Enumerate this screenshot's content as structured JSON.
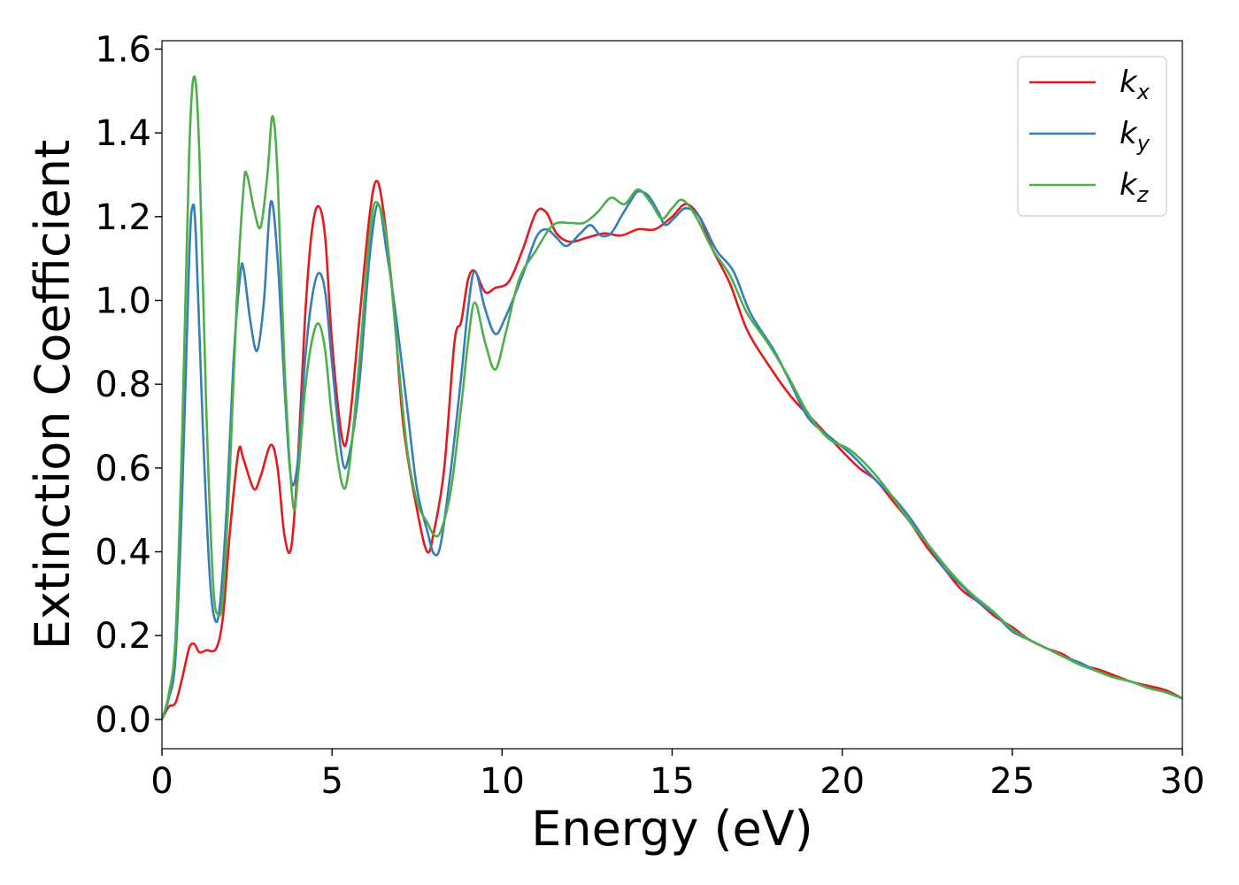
{
  "chart_data": {
    "type": "line",
    "title": "",
    "xlabel": "Energy (eV)",
    "ylabel": "Extinction Coefficient",
    "xlim": [
      0,
      30
    ],
    "ylim": [
      -0.07,
      1.62
    ],
    "xticks": [
      0,
      5,
      10,
      15,
      20,
      25,
      30
    ],
    "xtick_labels": [
      "0",
      "5",
      "10",
      "15",
      "20",
      "25",
      "30"
    ],
    "yticks": [
      0.0,
      0.2,
      0.4,
      0.6,
      0.8,
      1.0,
      1.2,
      1.4,
      1.6
    ],
    "ytick_labels": [
      "0.0",
      "0.2",
      "0.4",
      "0.6",
      "0.8",
      "1.0",
      "1.2",
      "1.4",
      "1.6"
    ],
    "grid": false,
    "legend_position": "top-right",
    "series": [
      {
        "name": "k",
        "subscript": "x",
        "color": "#e41a1c",
        "points": [
          [
            0,
            0.0
          ],
          [
            0.2,
            0.03
          ],
          [
            0.4,
            0.04
          ],
          [
            0.6,
            0.1
          ],
          [
            0.8,
            0.17
          ],
          [
            0.95,
            0.18
          ],
          [
            1.1,
            0.16
          ],
          [
            1.3,
            0.165
          ],
          [
            1.6,
            0.17
          ],
          [
            1.8,
            0.25
          ],
          [
            2.0,
            0.45
          ],
          [
            2.25,
            0.64
          ],
          [
            2.4,
            0.62
          ],
          [
            2.7,
            0.55
          ],
          [
            2.9,
            0.58
          ],
          [
            3.2,
            0.655
          ],
          [
            3.4,
            0.6
          ],
          [
            3.6,
            0.44
          ],
          [
            3.8,
            0.41
          ],
          [
            4.0,
            0.62
          ],
          [
            4.2,
            0.95
          ],
          [
            4.4,
            1.16
          ],
          [
            4.6,
            1.225
          ],
          [
            4.8,
            1.15
          ],
          [
            5.0,
            0.9
          ],
          [
            5.3,
            0.67
          ],
          [
            5.5,
            0.7
          ],
          [
            5.8,
            0.95
          ],
          [
            6.1,
            1.2
          ],
          [
            6.3,
            1.285
          ],
          [
            6.5,
            1.22
          ],
          [
            6.8,
            1.0
          ],
          [
            7.1,
            0.7
          ],
          [
            7.5,
            0.5
          ],
          [
            7.8,
            0.4
          ],
          [
            8.0,
            0.45
          ],
          [
            8.3,
            0.6
          ],
          [
            8.6,
            0.9
          ],
          [
            8.8,
            0.95
          ],
          [
            9.0,
            1.05
          ],
          [
            9.2,
            1.07
          ],
          [
            9.5,
            1.02
          ],
          [
            9.8,
            1.03
          ],
          [
            10.2,
            1.045
          ],
          [
            10.6,
            1.12
          ],
          [
            11.0,
            1.21
          ],
          [
            11.3,
            1.21
          ],
          [
            11.6,
            1.16
          ],
          [
            12.0,
            1.14
          ],
          [
            12.5,
            1.15
          ],
          [
            13.0,
            1.16
          ],
          [
            13.5,
            1.155
          ],
          [
            14.0,
            1.17
          ],
          [
            14.5,
            1.17
          ],
          [
            15.0,
            1.2
          ],
          [
            15.4,
            1.23
          ],
          [
            15.8,
            1.2
          ],
          [
            16.2,
            1.12
          ],
          [
            16.7,
            1.04
          ],
          [
            17.2,
            0.93
          ],
          [
            17.8,
            0.85
          ],
          [
            18.5,
            0.77
          ],
          [
            19.2,
            0.71
          ],
          [
            20.0,
            0.64
          ],
          [
            20.5,
            0.6
          ],
          [
            21.0,
            0.57
          ],
          [
            21.5,
            0.52
          ],
          [
            22.0,
            0.47
          ],
          [
            22.5,
            0.41
          ],
          [
            23.0,
            0.36
          ],
          [
            23.5,
            0.31
          ],
          [
            24.0,
            0.28
          ],
          [
            24.5,
            0.245
          ],
          [
            25.0,
            0.22
          ],
          [
            25.5,
            0.19
          ],
          [
            26.0,
            0.17
          ],
          [
            26.5,
            0.155
          ],
          [
            27.0,
            0.13
          ],
          [
            27.5,
            0.12
          ],
          [
            28.0,
            0.105
          ],
          [
            28.5,
            0.09
          ],
          [
            29.0,
            0.08
          ],
          [
            29.5,
            0.07
          ],
          [
            30.0,
            0.05
          ]
        ]
      },
      {
        "name": "k",
        "subscript": "y",
        "color": "#377eb8",
        "points": [
          [
            0,
            0.0
          ],
          [
            0.2,
            0.05
          ],
          [
            0.4,
            0.15
          ],
          [
            0.6,
            0.55
          ],
          [
            0.8,
            1.1
          ],
          [
            0.9,
            1.225
          ],
          [
            1.0,
            1.15
          ],
          [
            1.2,
            0.7
          ],
          [
            1.4,
            0.35
          ],
          [
            1.55,
            0.24
          ],
          [
            1.7,
            0.27
          ],
          [
            1.9,
            0.5
          ],
          [
            2.1,
            0.85
          ],
          [
            2.3,
            1.06
          ],
          [
            2.4,
            1.075
          ],
          [
            2.6,
            0.95
          ],
          [
            2.8,
            0.88
          ],
          [
            3.0,
            1.0
          ],
          [
            3.2,
            1.235
          ],
          [
            3.4,
            1.1
          ],
          [
            3.6,
            0.8
          ],
          [
            3.8,
            0.57
          ],
          [
            4.0,
            0.62
          ],
          [
            4.2,
            0.85
          ],
          [
            4.4,
            1.0
          ],
          [
            4.6,
            1.065
          ],
          [
            4.8,
            1.02
          ],
          [
            5.0,
            0.85
          ],
          [
            5.3,
            0.62
          ],
          [
            5.5,
            0.63
          ],
          [
            5.8,
            0.8
          ],
          [
            6.1,
            1.1
          ],
          [
            6.35,
            1.23
          ],
          [
            6.6,
            1.12
          ],
          [
            6.9,
            0.95
          ],
          [
            7.2,
            0.75
          ],
          [
            7.5,
            0.55
          ],
          [
            7.8,
            0.45
          ],
          [
            8.0,
            0.395
          ],
          [
            8.2,
            0.42
          ],
          [
            8.5,
            0.6
          ],
          [
            8.8,
            0.82
          ],
          [
            9.0,
            0.98
          ],
          [
            9.2,
            1.07
          ],
          [
            9.5,
            0.98
          ],
          [
            9.8,
            0.92
          ],
          [
            10.1,
            0.96
          ],
          [
            10.6,
            1.06
          ],
          [
            11.0,
            1.15
          ],
          [
            11.3,
            1.17
          ],
          [
            11.6,
            1.15
          ],
          [
            11.9,
            1.13
          ],
          [
            12.3,
            1.16
          ],
          [
            12.6,
            1.18
          ],
          [
            12.9,
            1.155
          ],
          [
            13.2,
            1.16
          ],
          [
            13.5,
            1.2
          ],
          [
            13.8,
            1.24
          ],
          [
            14.0,
            1.26
          ],
          [
            14.3,
            1.25
          ],
          [
            14.6,
            1.21
          ],
          [
            14.8,
            1.18
          ],
          [
            15.1,
            1.2
          ],
          [
            15.4,
            1.22
          ],
          [
            15.8,
            1.2
          ],
          [
            16.3,
            1.12
          ],
          [
            16.8,
            1.07
          ],
          [
            17.3,
            0.97
          ],
          [
            18.0,
            0.88
          ],
          [
            18.5,
            0.8
          ],
          [
            19.0,
            0.72
          ],
          [
            19.7,
            0.67
          ],
          [
            20.3,
            0.63
          ],
          [
            21.0,
            0.57
          ],
          [
            21.5,
            0.53
          ],
          [
            22.0,
            0.48
          ],
          [
            22.5,
            0.42
          ],
          [
            23.0,
            0.36
          ],
          [
            23.5,
            0.32
          ],
          [
            24.0,
            0.28
          ],
          [
            24.5,
            0.25
          ],
          [
            25.0,
            0.21
          ],
          [
            25.5,
            0.19
          ],
          [
            26.0,
            0.17
          ],
          [
            26.5,
            0.15
          ],
          [
            27.0,
            0.135
          ],
          [
            27.5,
            0.115
          ],
          [
            28.0,
            0.1
          ],
          [
            28.5,
            0.09
          ],
          [
            29.0,
            0.075
          ],
          [
            29.5,
            0.065
          ],
          [
            30.0,
            0.05
          ]
        ]
      },
      {
        "name": "k",
        "subscript": "z",
        "color": "#4daf4a",
        "points": [
          [
            0,
            0.0
          ],
          [
            0.2,
            0.06
          ],
          [
            0.4,
            0.2
          ],
          [
            0.6,
            0.7
          ],
          [
            0.8,
            1.35
          ],
          [
            0.95,
            1.535
          ],
          [
            1.1,
            1.35
          ],
          [
            1.3,
            0.75
          ],
          [
            1.5,
            0.33
          ],
          [
            1.65,
            0.25
          ],
          [
            1.8,
            0.3
          ],
          [
            2.0,
            0.6
          ],
          [
            2.2,
            1.0
          ],
          [
            2.4,
            1.27
          ],
          [
            2.5,
            1.3
          ],
          [
            2.7,
            1.22
          ],
          [
            2.9,
            1.175
          ],
          [
            3.1,
            1.3
          ],
          [
            3.25,
            1.44
          ],
          [
            3.4,
            1.3
          ],
          [
            3.6,
            0.85
          ],
          [
            3.85,
            0.515
          ],
          [
            4.0,
            0.58
          ],
          [
            4.2,
            0.78
          ],
          [
            4.4,
            0.9
          ],
          [
            4.6,
            0.945
          ],
          [
            4.8,
            0.88
          ],
          [
            5.0,
            0.72
          ],
          [
            5.3,
            0.56
          ],
          [
            5.5,
            0.6
          ],
          [
            5.8,
            0.85
          ],
          [
            6.1,
            1.15
          ],
          [
            6.3,
            1.235
          ],
          [
            6.6,
            1.15
          ],
          [
            6.9,
            0.9
          ],
          [
            7.2,
            0.65
          ],
          [
            7.5,
            0.52
          ],
          [
            7.8,
            0.47
          ],
          [
            8.0,
            0.44
          ],
          [
            8.2,
            0.45
          ],
          [
            8.5,
            0.55
          ],
          [
            8.8,
            0.75
          ],
          [
            9.0,
            0.9
          ],
          [
            9.2,
            0.995
          ],
          [
            9.5,
            0.9
          ],
          [
            9.8,
            0.835
          ],
          [
            10.1,
            0.92
          ],
          [
            10.5,
            1.05
          ],
          [
            11.0,
            1.12
          ],
          [
            11.5,
            1.18
          ],
          [
            12.0,
            1.185
          ],
          [
            12.4,
            1.185
          ],
          [
            12.8,
            1.21
          ],
          [
            13.2,
            1.245
          ],
          [
            13.6,
            1.23
          ],
          [
            14.0,
            1.265
          ],
          [
            14.4,
            1.23
          ],
          [
            14.7,
            1.195
          ],
          [
            15.0,
            1.22
          ],
          [
            15.3,
            1.24
          ],
          [
            15.7,
            1.2
          ],
          [
            16.2,
            1.12
          ],
          [
            16.7,
            1.06
          ],
          [
            17.2,
            0.97
          ],
          [
            17.8,
            0.9
          ],
          [
            18.4,
            0.82
          ],
          [
            19.0,
            0.73
          ],
          [
            19.6,
            0.67
          ],
          [
            20.2,
            0.645
          ],
          [
            20.8,
            0.6
          ],
          [
            21.4,
            0.54
          ],
          [
            22.0,
            0.47
          ],
          [
            22.6,
            0.41
          ],
          [
            23.2,
            0.35
          ],
          [
            23.8,
            0.3
          ],
          [
            24.4,
            0.26
          ],
          [
            25.0,
            0.215
          ],
          [
            25.5,
            0.19
          ],
          [
            26.0,
            0.17
          ],
          [
            26.5,
            0.15
          ],
          [
            27.0,
            0.13
          ],
          [
            27.5,
            0.115
          ],
          [
            28.0,
            0.1
          ],
          [
            28.5,
            0.09
          ],
          [
            29.0,
            0.075
          ],
          [
            29.5,
            0.065
          ],
          [
            30.0,
            0.05
          ]
        ]
      }
    ]
  }
}
